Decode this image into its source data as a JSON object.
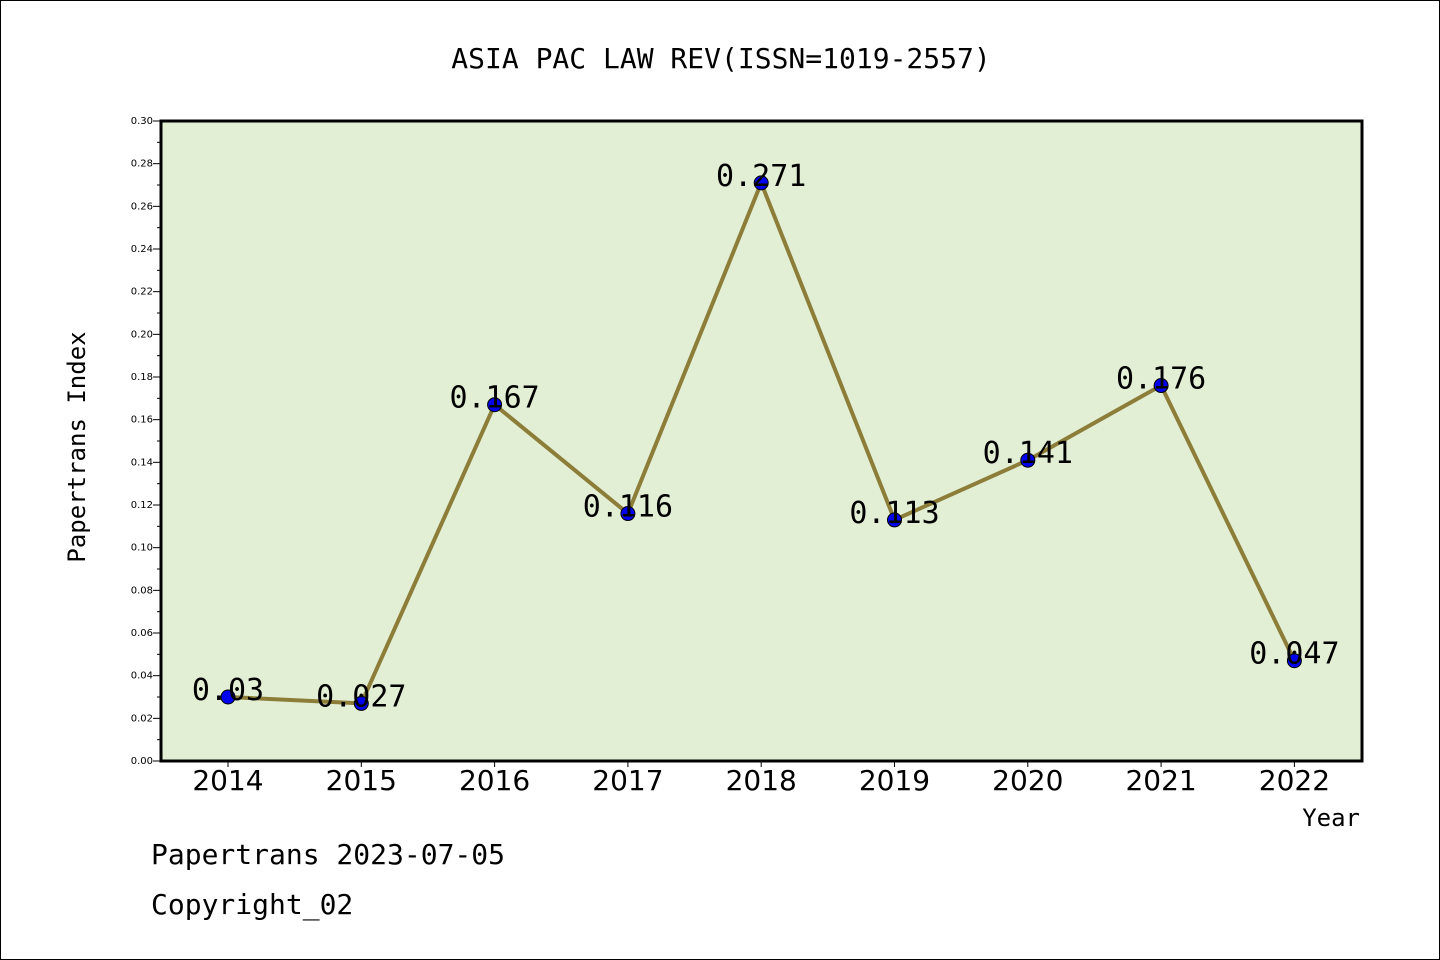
{
  "chart_data": {
    "type": "line",
    "title": "ASIA PAC LAW REV(ISSN=1019-2557)",
    "xlabel": "Year",
    "ylabel": "Papertrans Index",
    "categories": [
      "2014",
      "2015",
      "2016",
      "2017",
      "2018",
      "2019",
      "2020",
      "2021",
      "2022"
    ],
    "values": [
      0.03,
      0.027,
      0.167,
      0.116,
      0.271,
      0.113,
      0.141,
      0.176,
      0.047
    ],
    "data_labels": [
      "0.03",
      "0.027",
      "0.167",
      "0.116",
      "0.271",
      "0.113",
      "0.141",
      "0.176",
      "0.047"
    ],
    "ylim": [
      0,
      0.3
    ],
    "yticks": [
      "0.00",
      "0.02",
      "0.04",
      "0.06",
      "0.08",
      "0.10",
      "0.12",
      "0.14",
      "0.16",
      "0.18",
      "0.20",
      "0.22",
      "0.24",
      "0.26",
      "0.28",
      "0.30"
    ],
    "grid": false,
    "legend": "none",
    "colors": {
      "plot_background": "#e2efd5",
      "line": "#8c7d38",
      "marker": "#0000ee"
    }
  },
  "footer": {
    "date_line": "Papertrans 2023-07-05",
    "copyright": "Copyright_02"
  }
}
